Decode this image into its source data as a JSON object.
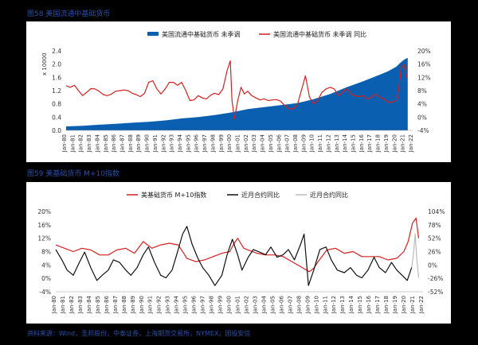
{
  "figure1": {
    "title": "图58  美国流通中基础货币",
    "legend": {
      "area_label": "美国流通中基础货币 未季调",
      "line_label": "美国流通中基础货币 未季调 同比"
    },
    "y_left_unit": "x 10000",
    "y_left_ticks": [
      "0.0",
      "0.4",
      "0.8",
      "1.2",
      "1.6",
      "2.0",
      "2.4"
    ],
    "y_right_ticks": [
      "-4%",
      "0%",
      "4%",
      "8%",
      "12%",
      "16%",
      "20%"
    ]
  },
  "figure2": {
    "title": "图59  美基础货币 M+10指数",
    "legend": {
      "red_label": "美基础货币 M+10指数",
      "black_label": "近月合约同比",
      "gray_label": "近月合约同比"
    },
    "y_left_ticks": [
      "-4%",
      "0%",
      "4%",
      "8%",
      "12%",
      "16%",
      "20%"
    ],
    "y_right_ticks": [
      "-52%",
      "-26%",
      "0%",
      "26%",
      "52%",
      "78%",
      "104%"
    ]
  },
  "source_text": "资料来源：Wind，圣邦股份，中泰证券，上海期货交易所，NYMEX，国投安信",
  "chart_data": [
    {
      "type": "area",
      "title": "图58  美国流通中基础货币",
      "x_tick_labels": [
        "Jan-80",
        "Jan-81",
        "Jan-82",
        "Jan-83",
        "Jan-84",
        "Jan-85",
        "Jan-86",
        "Jan-87",
        "Jan-88",
        "Jan-89",
        "Jan-90",
        "Jan-91",
        "Jan-92",
        "Jan-93",
        "Jan-94",
        "Jan-95",
        "Jan-96",
        "Jan-97",
        "Jan-98",
        "Jan-99",
        "Jan-00",
        "Jan-01",
        "Jan-02",
        "Jan-03",
        "Jan-04",
        "Jan-05",
        "Jan-06",
        "Jan-07",
        "Jan-08",
        "Jan-09",
        "Jan-10",
        "Jan-11",
        "Jan-12",
        "Jan-13",
        "Jan-14",
        "Jan-15",
        "Jan-16",
        "Jan-17",
        "Jan-18",
        "Jan-19",
        "Jan-20",
        "Jan-21",
        "Jan-22"
      ],
      "x_range": [
        1980,
        2022
      ],
      "ylim_left": [
        0,
        2.4
      ],
      "ylim_right": [
        -4,
        20
      ],
      "grid": false,
      "legend_position": "top",
      "series": [
        {
          "name": "美国流通中基础货币 未季调",
          "axis": "left",
          "kind": "area",
          "color": "#0b5fb0",
          "x": [
            1980,
            1982,
            1984,
            1986,
            1988,
            1990,
            1992,
            1994,
            1996,
            1998,
            2000,
            2002,
            2004,
            2006,
            2008,
            2010,
            2012,
            2014,
            2016,
            2018,
            2019,
            2020,
            2020.5,
            2021,
            2021.4
          ],
          "y": [
            0.12,
            0.14,
            0.17,
            0.2,
            0.23,
            0.26,
            0.3,
            0.36,
            0.4,
            0.46,
            0.54,
            0.64,
            0.7,
            0.76,
            0.82,
            0.94,
            1.1,
            1.3,
            1.48,
            1.68,
            1.78,
            1.92,
            2.04,
            2.14,
            2.19
          ]
        },
        {
          "name": "美国流通中基础货币 未季调 同比",
          "axis": "right",
          "kind": "line",
          "color": "#d42020",
          "x": [
            1980,
            1980.5,
            1981,
            1981.5,
            1982,
            1982.5,
            1983,
            1983.5,
            1984,
            1984.5,
            1985,
            1985.5,
            1986,
            1986.5,
            1987,
            1987.5,
            1988,
            1988.5,
            1989,
            1989.5,
            1990,
            1990.5,
            1991,
            1991.5,
            1992,
            1992.5,
            1993,
            1993.5,
            1994,
            1994.5,
            1995,
            1995.5,
            1996,
            1996.5,
            1997,
            1997.5,
            1998,
            1998.5,
            1999,
            1999.5,
            1999.9,
            2000.1,
            2000.4,
            2000.8,
            2001.2,
            2001.6,
            2002,
            2002.5,
            2003,
            2003.5,
            2004,
            2004.5,
            2005,
            2005.5,
            2006,
            2006.5,
            2007,
            2007.5,
            2008,
            2008.5,
            2009,
            2009.5,
            2010,
            2010.5,
            2011,
            2011.5,
            2012,
            2012.5,
            2013,
            2013.5,
            2014,
            2014.5,
            2015,
            2015.5,
            2016,
            2016.5,
            2017,
            2017.5,
            2018,
            2018.5,
            2019,
            2019.5,
            2020,
            2020.3,
            2020.6,
            2021,
            2021.3
          ],
          "y": [
            9.5,
            9.0,
            9.6,
            8.0,
            6.5,
            7.5,
            8.6,
            8.5,
            7.8,
            6.8,
            6.5,
            7.0,
            7.8,
            8.0,
            8.2,
            8.0,
            7.2,
            6.8,
            6.2,
            7.2,
            10.5,
            11.0,
            8.5,
            7.0,
            8.5,
            10.5,
            10.5,
            9.6,
            10.5,
            8.0,
            5.0,
            5.2,
            6.5,
            5.8,
            5.5,
            6.6,
            7.2,
            6.8,
            8.5,
            14.0,
            17.0,
            5.0,
            -0.5,
            5.0,
            9.0,
            7.0,
            7.8,
            6.5,
            5.8,
            5.2,
            5.5,
            5.0,
            5.2,
            5.3,
            4.8,
            3.5,
            2.5,
            2.5,
            3.5,
            8.0,
            12.5,
            6.0,
            4.0,
            5.0,
            7.5,
            8.5,
            9.0,
            8.5,
            6.5,
            7.5,
            8.5,
            7.0,
            6.5,
            6.2,
            6.5,
            5.5,
            6.0,
            7.0,
            6.0,
            5.5,
            4.5,
            4.5,
            5.0,
            8.0,
            15.0,
            16.0,
            12.0
          ]
        }
      ]
    },
    {
      "type": "line",
      "title": "图59  美基础货币 M+10指数",
      "x_tick_labels": [
        "Jan-80",
        "Jan-81",
        "Jan-82",
        "Jan-83",
        "Jan-84",
        "Jan-85",
        "Jan-86",
        "Jan-87",
        "Jan-88",
        "Jan-89",
        "Jan-90",
        "Jan-91",
        "Jan-92",
        "Jan-93",
        "Jan-94",
        "Jan-95",
        "Jan-96",
        "Jan-97",
        "Jan-98",
        "Jan-99",
        "Jan-00",
        "Jan-01",
        "Jan-02",
        "Jan-03",
        "Jan-04",
        "Jan-05",
        "Jan-06",
        "Jan-07",
        "Jan-08",
        "Jan-09",
        "Jan-10",
        "Jan-11",
        "Jan-12",
        "Jan-13",
        "Jan-14",
        "Jan-15",
        "Jan-16",
        "Jan-17",
        "Jan-18",
        "Jan-19",
        "Jan-20",
        "Jan-21",
        "Jan-22"
      ],
      "x_range": [
        1980,
        2022
      ],
      "ylim_left": [
        -4,
        20
      ],
      "ylim_right": [
        -52,
        104
      ],
      "grid": false,
      "legend_position": "top",
      "series": [
        {
          "name": "美基础货币 M+10指数",
          "axis": "left",
          "color": "#d42020",
          "x": [
            1980,
            1981,
            1982,
            1983,
            1984,
            1985,
            1986,
            1987,
            1988,
            1989,
            1990,
            1991,
            1992,
            1993,
            1994,
            1995,
            1996,
            1997,
            1998,
            1999,
            1999.9,
            2000.3,
            2000.8,
            2001.5,
            2002,
            2003,
            2004,
            2005,
            2006,
            2007,
            2008,
            2009,
            2009.5,
            2010,
            2011,
            2012,
            2013,
            2014,
            2015,
            2016,
            2017,
            2018,
            2019,
            2019.8,
            2020.3,
            2020.8,
            2021.2,
            2021.5
          ],
          "y": [
            10,
            9,
            8,
            9,
            8.5,
            7,
            7,
            8.5,
            9,
            7.5,
            11,
            9,
            10,
            10.5,
            10,
            6,
            5,
            5.5,
            6.5,
            7.5,
            8,
            10,
            12,
            9,
            8.5,
            7.5,
            7,
            7,
            6.5,
            5,
            3.5,
            2,
            3,
            5,
            8.5,
            9,
            7.5,
            8,
            6.5,
            6.5,
            6.5,
            5.5,
            6,
            8,
            11,
            16.5,
            18,
            12
          ]
        },
        {
          "name": "近月合约同比",
          "axis": "right",
          "color": "#111111",
          "x": [
            1980,
            1980.7,
            1981.3,
            1982,
            1982.7,
            1983.3,
            1984,
            1984.7,
            1985.3,
            1986,
            1986.6,
            1987.3,
            1988,
            1988.6,
            1989.3,
            1990,
            1990.6,
            1991.3,
            1992,
            1992.6,
            1993.3,
            1994,
            1994.5,
            1995,
            1995.6,
            1996.2,
            1996.8,
            1997.5,
            1998.2,
            1999,
            1999.6,
            2000.2,
            2000.8,
            2001.3,
            2002,
            2002.6,
            2003.3,
            2004,
            2004.6,
            2005.3,
            2006,
            2006.6,
            2007.3,
            2008,
            2008.4,
            2008.9,
            2009.5,
            2010.2,
            2010.9,
            2011.5,
            2012.2,
            2013,
            2013.7,
            2014.4,
            2015,
            2015.7,
            2016.4,
            2017,
            2017.7,
            2018.4,
            2019,
            2019.6,
            2020.2,
            2020.7
          ],
          "y": [
            30,
            10,
            -10,
            -20,
            5,
            25,
            -5,
            -30,
            -20,
            -10,
            10,
            5,
            -10,
            -20,
            -5,
            20,
            35,
            5,
            -20,
            -25,
            -10,
            30,
            60,
            75,
            40,
            15,
            -5,
            -20,
            -40,
            -20,
            20,
            50,
            20,
            -10,
            15,
            30,
            25,
            20,
            35,
            15,
            20,
            30,
            10,
            40,
            60,
            -40,
            -10,
            30,
            35,
            10,
            -10,
            -15,
            -5,
            -20,
            -25,
            -10,
            15,
            -5,
            -15,
            5,
            -10,
            -20,
            -30,
            -5
          ]
        },
        {
          "name": "近月合约同比",
          "axis": "right",
          "color": "#bbbbbb",
          "x": [
            2020.7,
            2020.9,
            2021.1,
            2021.3,
            2021.5
          ],
          "y": [
            -5,
            20,
            60,
            10,
            -25
          ]
        }
      ]
    }
  ]
}
